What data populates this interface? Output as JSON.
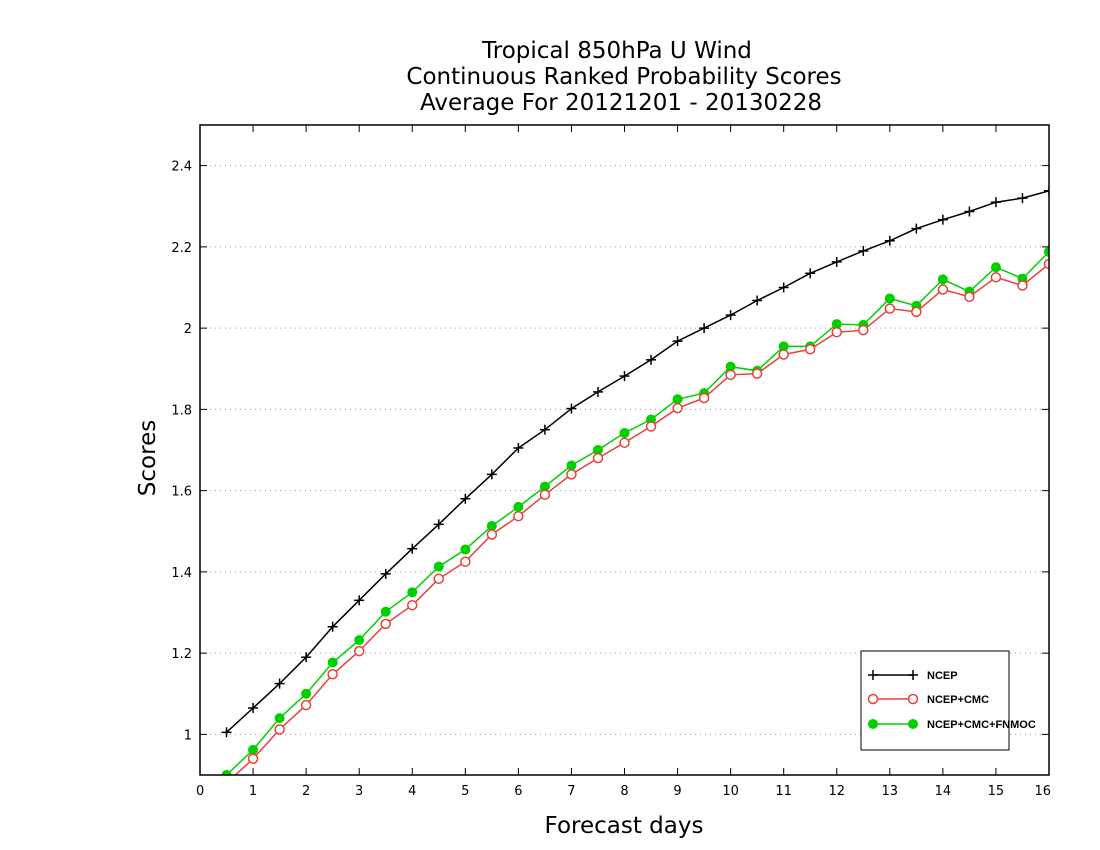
{
  "chart_data": {
    "type": "line",
    "title": [
      "Tropical 850hPa U Wind",
      "Continuous Ranked Probability Scores",
      "Average For 20121201 - 20130228"
    ],
    "xlabel": "Forecast days",
    "ylabel": "Scores",
    "xlim": [
      0,
      16
    ],
    "ylim": [
      0.9,
      2.5
    ],
    "xticks": [
      "0",
      "1",
      "2",
      "3",
      "4",
      "5",
      "6",
      "7",
      "8",
      "9",
      "10",
      "11",
      "12",
      "13",
      "14",
      "15",
      "16"
    ],
    "yticks": [
      "1",
      "1.2",
      "1.4",
      "1.6",
      "1.8",
      "2",
      "2.2",
      "2.4"
    ],
    "grid": "horizontal-dotted",
    "legend_position": "bottom-right",
    "x": [
      0.5,
      1,
      1.5,
      2,
      2.5,
      3,
      3.5,
      4,
      4.5,
      5,
      5.5,
      6,
      6.5,
      7,
      7.5,
      8,
      8.5,
      9,
      9.5,
      10,
      10.5,
      11,
      11.5,
      12,
      12.5,
      13,
      13.5,
      14,
      14.5,
      15,
      15.5,
      16
    ],
    "series": [
      {
        "name": "NCEP",
        "color": "#000000",
        "marker": "plus",
        "values": [
          1.005,
          1.065,
          1.125,
          1.19,
          1.265,
          1.33,
          1.395,
          1.457,
          1.517,
          1.58,
          1.64,
          1.705,
          1.75,
          1.802,
          1.843,
          1.882,
          1.922,
          1.968,
          2.0,
          2.032,
          2.068,
          2.1,
          2.135,
          2.163,
          2.19,
          2.215,
          2.245,
          2.267,
          2.287,
          2.31,
          2.32,
          2.338
        ]
      },
      {
        "name": "NCEP+CMC",
        "color": "#e8413c",
        "marker": "open-circle",
        "values": [
          0.88,
          0.94,
          1.012,
          1.072,
          1.148,
          1.205,
          1.272,
          1.318,
          1.383,
          1.425,
          1.492,
          1.537,
          1.59,
          1.64,
          1.68,
          1.718,
          1.758,
          1.803,
          1.828,
          1.885,
          1.888,
          1.935,
          1.948,
          1.99,
          1.995,
          2.048,
          2.04,
          2.095,
          2.077,
          2.125,
          2.105,
          2.158
        ]
      },
      {
        "name": "NCEP+CMC+FNMOC",
        "color": "#00d000",
        "marker": "filled-circle",
        "values": [
          0.9,
          0.962,
          1.04,
          1.1,
          1.177,
          1.232,
          1.302,
          1.35,
          1.413,
          1.455,
          1.513,
          1.56,
          1.61,
          1.662,
          1.7,
          1.742,
          1.775,
          1.825,
          1.84,
          1.905,
          1.895,
          1.955,
          1.955,
          2.01,
          2.008,
          2.073,
          2.055,
          2.12,
          2.09,
          2.15,
          2.122,
          2.188
        ]
      }
    ]
  }
}
